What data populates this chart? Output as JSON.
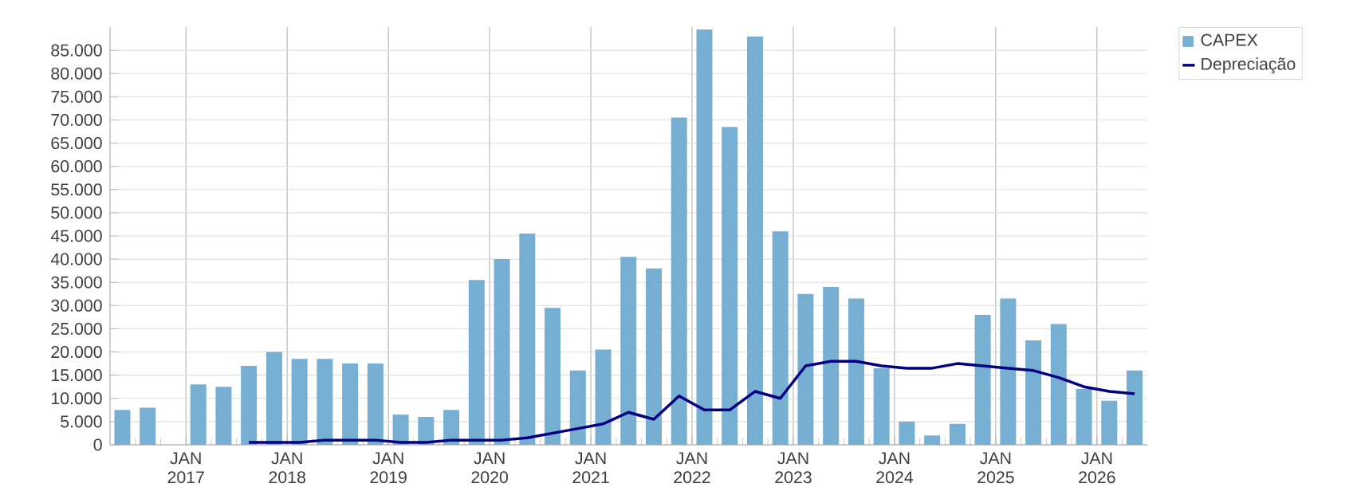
{
  "chart_data": {
    "type": "bar",
    "x": [
      "2016-05-15",
      "2016-08-15",
      "2016-11-15",
      "2017-02-15",
      "2017-05-15",
      "2017-08-15",
      "2017-11-15",
      "2018-02-15",
      "2018-05-15",
      "2018-08-15",
      "2018-11-15",
      "2019-02-15",
      "2019-05-15",
      "2019-08-15",
      "2019-11-15",
      "2020-02-15",
      "2020-05-15",
      "2020-08-15",
      "2020-11-15",
      "2021-02-15",
      "2021-05-15",
      "2021-08-15",
      "2021-11-15",
      "2022-02-15",
      "2022-05-15",
      "2022-08-15",
      "2022-11-15",
      "2023-02-15",
      "2023-05-15",
      "2023-08-15",
      "2023-11-15",
      "2024-02-15",
      "2024-05-15",
      "2024-08-15",
      "2024-11-15",
      "2025-02-15",
      "2025-05-15",
      "2025-08-15",
      "2025-11-15",
      "2026-02-15",
      "2026-05-15"
    ],
    "series": [
      {
        "name": "CAPEX",
        "color": "#76afd2",
        "values": [
          7500,
          8000,
          null,
          13000,
          12500,
          17000,
          20000,
          18500,
          18500,
          17500,
          17500,
          6500,
          6000,
          7500,
          35500,
          40000,
          45500,
          29500,
          16000,
          20500,
          40500,
          38000,
          70500,
          89500,
          68500,
          88000,
          46000,
          32500,
          34000,
          31500,
          16500,
          5000,
          2000,
          4500,
          28000,
          31500,
          22500,
          26000,
          12000,
          9500,
          16000
        ]
      },
      {
        "name": "Depreciação",
        "type": "line",
        "color": "#000080",
        "x": [
          "2017-08-15",
          "2017-11-15",
          "2018-02-15",
          "2018-05-15",
          "2018-08-15",
          "2018-11-15",
          "2019-02-15",
          "2019-05-15",
          "2019-08-15",
          "2019-11-15",
          "2020-02-15",
          "2020-05-15",
          "2020-08-15",
          "2020-11-15",
          "2021-02-15",
          "2021-05-15",
          "2021-08-15",
          "2021-11-15",
          "2022-02-15",
          "2022-05-15",
          "2022-08-15",
          "2022-11-15",
          "2023-02-15",
          "2023-05-15",
          "2023-08-15",
          "2023-11-15",
          "2024-02-15",
          "2024-05-15",
          "2024-08-15",
          "2024-11-15",
          "2025-02-15",
          "2025-05-15",
          "2025-08-15",
          "2025-11-15",
          "2026-02-15",
          "2026-05-15"
        ],
        "values": [
          500,
          500,
          500,
          1000,
          1000,
          1000,
          500,
          500,
          1000,
          1000,
          1000,
          1500,
          2500,
          3500,
          4500,
          7000,
          5500,
          10500,
          7500,
          7500,
          11500,
          10000,
          17000,
          18000,
          18000,
          17000,
          16500,
          16500,
          17500,
          17000,
          16500,
          16000,
          14500,
          12500,
          11500,
          11000
        ]
      }
    ],
    "xlim": [
      "2016-04",
      "2026-07"
    ],
    "xticks": [
      {
        "value": "2016-07",
        "label": null
      },
      {
        "value": "2016-10",
        "label": null
      },
      {
        "value": "2017-01",
        "label": "JAN 2017"
      },
      {
        "value": "2017-04",
        "label": null
      },
      {
        "value": "2017-07",
        "label": null
      },
      {
        "value": "2017-10",
        "label": null
      },
      {
        "value": "2018-01",
        "label": "JAN 2018"
      },
      {
        "value": "2018-04",
        "label": null
      },
      {
        "value": "2018-07",
        "label": null
      },
      {
        "value": "2018-10",
        "label": null
      },
      {
        "value": "2019-01",
        "label": "JAN 2019"
      },
      {
        "value": "2019-04",
        "label": null
      },
      {
        "value": "2019-07",
        "label": null
      },
      {
        "value": "2019-10",
        "label": null
      },
      {
        "value": "2020-01",
        "label": "JAN 2020"
      },
      {
        "value": "2020-04",
        "label": null
      },
      {
        "value": "2020-07",
        "label": null
      },
      {
        "value": "2020-10",
        "label": null
      },
      {
        "value": "2021-01",
        "label": "JAN 2021"
      },
      {
        "value": "2021-04",
        "label": null
      },
      {
        "value": "2021-07",
        "label": null
      },
      {
        "value": "2021-10",
        "label": null
      },
      {
        "value": "2022-01",
        "label": "JAN 2022"
      },
      {
        "value": "2022-04",
        "label": null
      },
      {
        "value": "2022-07",
        "label": null
      },
      {
        "value": "2022-10",
        "label": null
      },
      {
        "value": "2023-01",
        "label": "JAN 2023"
      },
      {
        "value": "2023-04",
        "label": null
      },
      {
        "value": "2023-07",
        "label": null
      },
      {
        "value": "2023-10",
        "label": null
      },
      {
        "value": "2024-01",
        "label": "JAN 2024"
      },
      {
        "value": "2024-04",
        "label": null
      },
      {
        "value": "2024-07",
        "label": null
      },
      {
        "value": "2024-10",
        "label": null
      },
      {
        "value": "2025-01",
        "label": "JAN 2025"
      },
      {
        "value": "2025-04",
        "label": null
      },
      {
        "value": "2025-07",
        "label": null
      },
      {
        "value": "2025-10",
        "label": null
      },
      {
        "value": "2026-01",
        "label": "JAN 2026"
      },
      {
        "value": "2026-04",
        "label": null
      }
    ],
    "ylim": [
      0,
      90000
    ],
    "yticks": [
      0,
      {
        "value": 5000,
        "label": "5.000"
      },
      {
        "value": 10000,
        "label": "10.000"
      },
      {
        "value": 15000,
        "label": "15.000"
      },
      {
        "value": 20000,
        "label": "20.000"
      },
      {
        "value": 25000,
        "label": "25.000"
      },
      {
        "value": 30000,
        "label": "30.000"
      },
      {
        "value": 35000,
        "label": "35.000"
      },
      {
        "value": 40000,
        "label": "40.000"
      },
      {
        "value": 45000,
        "label": "45.000"
      },
      {
        "value": 50000,
        "label": "50.000"
      },
      {
        "value": 55000,
        "label": "55.000"
      },
      {
        "value": 60000,
        "label": "60.000"
      },
      {
        "value": 65000,
        "label": "65.000"
      },
      {
        "value": 70000,
        "label": "70.000"
      },
      {
        "value": 75000,
        "label": "75.000"
      },
      {
        "value": 80000,
        "label": "80.000"
      },
      {
        "value": 85000,
        "label": "85.000"
      }
    ],
    "grid": true,
    "legend": "top right"
  }
}
